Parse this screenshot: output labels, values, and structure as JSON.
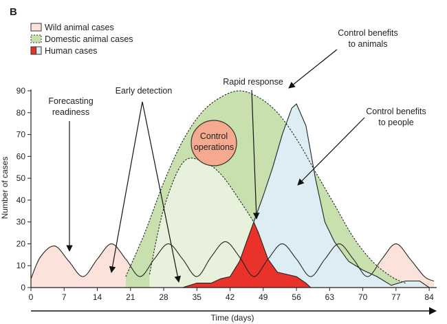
{
  "chart_data": {
    "type": "area",
    "panel_label": "B",
    "xlabel": "Time (days)",
    "ylabel": "Number of cases",
    "xlim": [
      0,
      85
    ],
    "ylim": [
      0,
      90
    ],
    "xticks": [
      0,
      7,
      14,
      21,
      28,
      35,
      42,
      49,
      56,
      63,
      70,
      77,
      84
    ],
    "yticks": [
      0,
      10,
      20,
      30,
      40,
      50,
      60,
      70,
      80,
      90
    ],
    "legend": [
      {
        "label": "Wild animal cases",
        "color": "#fbe3dc"
      },
      {
        "label": "Domestic animal cases",
        "color": "#c8e0ad"
      },
      {
        "label": "Human cases",
        "color": "#e8322a",
        "color2": "#dcedf4"
      }
    ],
    "series": [
      {
        "name": "Wild animal cases",
        "x": [
          0,
          2,
          5,
          8,
          11,
          14,
          17,
          20,
          23,
          26,
          29,
          32,
          35,
          38,
          41,
          44,
          47,
          50,
          53,
          56,
          59,
          62,
          65,
          68,
          71,
          74,
          77,
          80,
          83,
          85
        ],
        "values": [
          4,
          14,
          19,
          12,
          5,
          13,
          20,
          13,
          5,
          13,
          20,
          13,
          5,
          14,
          21,
          14,
          5,
          13,
          20,
          13,
          5,
          13,
          20,
          13,
          5,
          13,
          20,
          13,
          5,
          3
        ]
      },
      {
        "name": "Domestic animal cases",
        "x": [
          20,
          24,
          28,
          32,
          36,
          40,
          44,
          48,
          52,
          56,
          60,
          64,
          68,
          72,
          76,
          79
        ],
        "values": [
          5,
          25,
          48,
          67,
          80,
          87,
          90,
          87,
          80,
          68,
          53,
          38,
          23,
          12,
          5,
          2
        ]
      },
      {
        "name": "Domestic animal cases (controlled)",
        "x": [
          25,
          28,
          32,
          36,
          40,
          44,
          47
        ],
        "values": [
          6,
          36,
          57,
          58,
          52,
          40,
          30
        ]
      },
      {
        "name": "Human cases (uncontrolled)",
        "x": [
          47,
          49,
          51,
          53,
          55,
          56,
          58,
          60,
          62,
          64,
          67,
          70,
          73,
          76,
          79,
          82,
          84
        ],
        "values": [
          30,
          42,
          55,
          70,
          82,
          84,
          74,
          50,
          30,
          21,
          12,
          8,
          5,
          1,
          3,
          3,
          0
        ]
      },
      {
        "name": "Human cases (with rapid response)",
        "x": [
          32,
          35,
          38,
          40,
          42,
          44,
          46,
          47,
          48,
          50,
          52,
          54,
          56,
          58,
          59
        ],
        "values": [
          0,
          2,
          2,
          4,
          5,
          12,
          24,
          30,
          25,
          13,
          7,
          6,
          5,
          2,
          0
        ]
      }
    ],
    "annotations": [
      {
        "text": [
          "Forecasting",
          "readiness"
        ],
        "kind": "arrow-down",
        "target": [
          8,
          16
        ]
      },
      {
        "text": [
          "Early detection"
        ],
        "kind": "inverted-v",
        "targets": [
          [
            17,
            7
          ],
          [
            31,
            3
          ]
        ]
      },
      {
        "text": [
          "Control",
          "operations"
        ],
        "kind": "circle",
        "center": [
          41,
          66
        ]
      },
      {
        "text": [
          "Rapid response"
        ],
        "kind": "arrow-down",
        "target": [
          47,
          30
        ]
      },
      {
        "text": [
          "Control benefits",
          "to animals"
        ],
        "kind": "arrow",
        "target": [
          54,
          90
        ]
      },
      {
        "text": [
          "Control benefits",
          "to people"
        ],
        "kind": "arrow",
        "target": [
          58,
          45
        ]
      }
    ]
  }
}
